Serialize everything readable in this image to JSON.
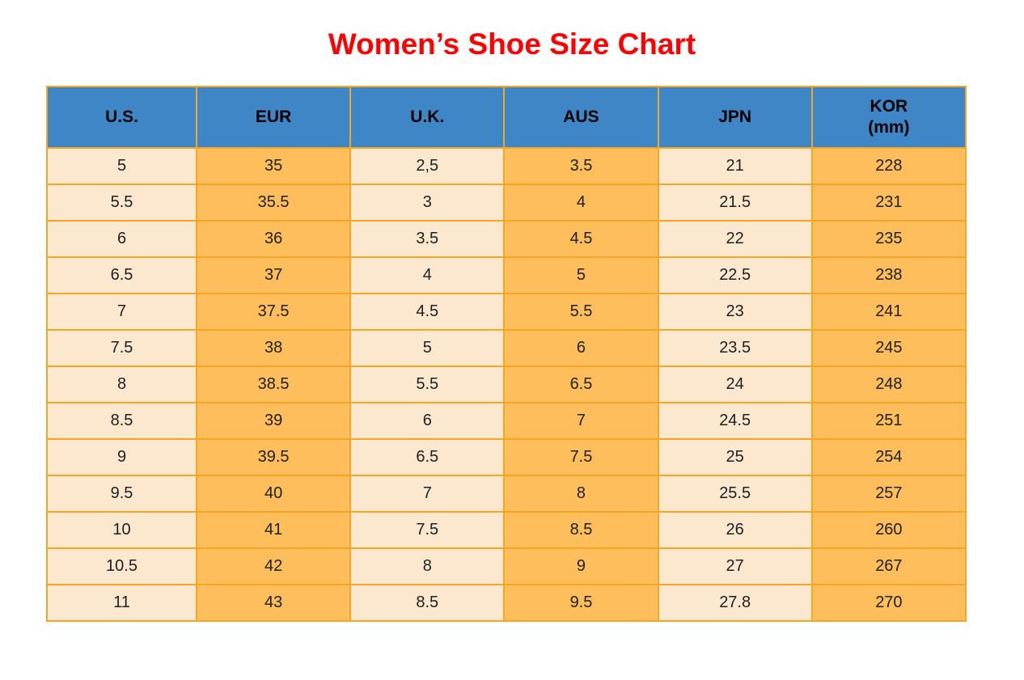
{
  "page": {
    "title": "Women’s Shoe Size Chart"
  },
  "header": {
    "columns": [
      {
        "key": "us",
        "label": "U.S."
      },
      {
        "key": "eur",
        "label": "EUR"
      },
      {
        "key": "uk",
        "label": "U.K."
      },
      {
        "key": "aus",
        "label": "AUS"
      },
      {
        "key": "jpn",
        "label": "JPN"
      },
      {
        "key": "kor",
        "label": "KOR",
        "sublabel": "(mm)"
      }
    ]
  },
  "chart_data": {
    "type": "table",
    "title": "Women’s Shoe Size Chart",
    "columns": [
      "U.S.",
      "EUR",
      "U.K.",
      "AUS",
      "JPN",
      "KOR (mm)"
    ],
    "rows": [
      [
        "5",
        "35",
        "2,5",
        "3.5",
        "21",
        "228"
      ],
      [
        "5.5",
        "35.5",
        "3",
        "4",
        "21.5",
        "231"
      ],
      [
        "6",
        "36",
        "3.5",
        "4.5",
        "22",
        "235"
      ],
      [
        "6.5",
        "37",
        "4",
        "5",
        "22.5",
        "238"
      ],
      [
        "7",
        "37.5",
        "4.5",
        "5.5",
        "23",
        "241"
      ],
      [
        "7.5",
        "38",
        "5",
        "6",
        "23.5",
        "245"
      ],
      [
        "8",
        "38.5",
        "5.5",
        "6.5",
        "24",
        "248"
      ],
      [
        "8.5",
        "39",
        "6",
        "7",
        "24.5",
        "251"
      ],
      [
        "9",
        "39.5",
        "6.5",
        "7.5",
        "25",
        "254"
      ],
      [
        "9.5",
        "40",
        "7",
        "8",
        "25.5",
        "257"
      ],
      [
        "10",
        "41",
        "7.5",
        "8.5",
        "26",
        "260"
      ],
      [
        "10.5",
        "42",
        "8",
        "9",
        "27",
        "267"
      ],
      [
        "11",
        "43",
        "8.5",
        "9.5",
        "27.8",
        "270"
      ]
    ]
  },
  "colors": {
    "title": "#ff0000",
    "header_bg": "#3f86c6",
    "border": "#f5a623",
    "cell_cream": "#fce8ce",
    "cell_orange": "#ffbe5c",
    "cell_text": "#1f1f1f"
  }
}
